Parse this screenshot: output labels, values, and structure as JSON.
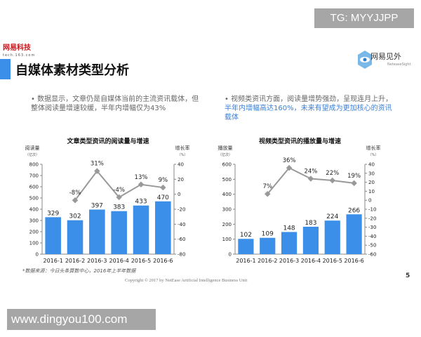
{
  "watermarks": {
    "top": "TG: MYYJJPP",
    "bottom": "www.dingyou100.com"
  },
  "header": {
    "logo": "网易科技",
    "logo_sub": "tech.163.com",
    "title": "自媒体素材类型分析",
    "brand": "网易见外",
    "brand_sub": "NeteaseSight"
  },
  "bullets": [
    {
      "text": "数据显示，文章仍是自媒体当前的主流资讯载体，但整体阅读量增速较缓，半年内增幅仅为43%",
      "highlight": ""
    },
    {
      "text": "视频类资讯方面，阅读量增势强劲，呈现连月上升，",
      "highlight": "半年内增幅高达160%，未来有望成为更加核心的资讯载体"
    }
  ],
  "footer": {
    "source": "*数据来源：今日头条算数中心，2016年上半年数据",
    "copyright": "Copyright © 2017 by NetEase Artificial Intelligence Business Unit",
    "page": "5"
  },
  "colors": {
    "bar": "#3b8fe8",
    "line": "#999999",
    "accent": "#3b8fe8"
  },
  "chart_data": [
    {
      "type": "bar+line",
      "title": "文章类型资讯的阅读量与增速",
      "ylabel": "阅读量",
      "ylabel_unit": "（亿次）",
      "y2label": "增长率",
      "y2label_unit": "（%）",
      "categories": [
        "2016-1",
        "2016-2",
        "2016-3",
        "2016-4",
        "2016-5",
        "2016-6"
      ],
      "values": [
        329,
        302,
        397,
        383,
        433,
        470
      ],
      "value_labels": [
        "329",
        "302",
        "397",
        "383",
        "433",
        "470"
      ],
      "growth": [
        null,
        -8,
        31,
        -4,
        13,
        9
      ],
      "growth_labels": [
        "",
        "-8%",
        "31%",
        "-4%",
        "13%",
        "9%"
      ],
      "ylim": [
        0,
        800
      ],
      "yticks": [
        "0",
        "100",
        "200",
        "300",
        "400",
        "500",
        "600",
        "700",
        "800"
      ],
      "y2lim": [
        -80,
        40
      ],
      "y2ticks": [
        "-80",
        "-60",
        "-40",
        "-20",
        "0",
        "20",
        "40"
      ],
      "grid": false
    },
    {
      "type": "bar+line",
      "title": "视频类型资讯的播放量与增速",
      "ylabel": "播放量",
      "ylabel_unit": "（亿次）",
      "y2label": "增长率",
      "y2label_unit": "（%）",
      "categories": [
        "2016-1",
        "2016-2",
        "2016-3",
        "2016-4",
        "2016-5",
        "2016-6"
      ],
      "values": [
        102,
        109,
        148,
        183,
        224,
        266
      ],
      "value_labels": [
        "102",
        "109",
        "148",
        "183",
        "224",
        "266"
      ],
      "growth": [
        null,
        7,
        36,
        24,
        22,
        19
      ],
      "growth_labels": [
        "",
        "7%",
        "36%",
        "24%",
        "22%",
        "19%"
      ],
      "ylim": [
        0,
        600
      ],
      "yticks": [
        "0",
        "100",
        "200",
        "300",
        "400",
        "500",
        "600"
      ],
      "y2lim": [
        -60,
        40
      ],
      "y2ticks": [
        "-60",
        "-50",
        "-40",
        "-30",
        "-20",
        "-10",
        "0",
        "10",
        "20",
        "30",
        "40"
      ],
      "grid": false
    }
  ]
}
